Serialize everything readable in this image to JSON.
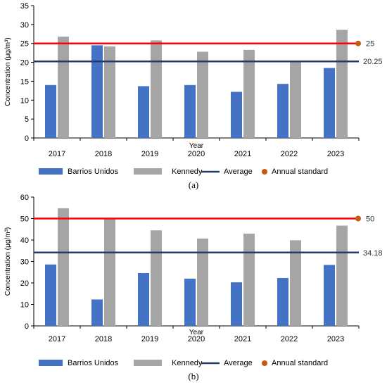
{
  "chart_data": [
    {
      "type": "bar",
      "panel": "(a)",
      "panel_letter": "a",
      "categories": [
        "2017",
        "2018",
        "2019",
        "2020",
        "2021",
        "2022",
        "2023"
      ],
      "series": [
        {
          "name": "Barrios Unidos",
          "color": "#4472C4",
          "values": [
            14.0,
            24.5,
            13.7,
            14.0,
            12.2,
            14.3,
            18.5
          ]
        },
        {
          "name": "Kennedy",
          "color": "#A5A5A5",
          "values": [
            26.8,
            24.2,
            25.8,
            22.8,
            23.3,
            20.2,
            28.6
          ]
        }
      ],
      "average": {
        "name": "Average",
        "value": 20.25,
        "label": "20.25",
        "color": "#1F3A6E"
      },
      "standard": {
        "name": "Annual standard",
        "value": 25,
        "label": "25",
        "line_color": "#FF0000",
        "marker_color": "#C55A11"
      },
      "ylabel": "Concentration (μg/m³)",
      "xlabel": "Year",
      "ylim": [
        0,
        35
      ],
      "yticks": [
        0,
        5,
        10,
        15,
        20,
        25,
        30,
        35
      ],
      "legend_position": "bottom",
      "grid": false
    },
    {
      "type": "bar",
      "panel": "(b)",
      "panel_letter": "b",
      "categories": [
        "2017",
        "2018",
        "2019",
        "2020",
        "2021",
        "2022",
        "2023"
      ],
      "series": [
        {
          "name": "Barrios Unidos",
          "color": "#4472C4",
          "values": [
            28.6,
            12.3,
            24.6,
            22.0,
            20.3,
            22.3,
            28.4
          ]
        },
        {
          "name": "Kennedy",
          "color": "#A5A5A5",
          "values": [
            54.8,
            50.0,
            44.5,
            40.7,
            43.0,
            39.9,
            46.7
          ]
        }
      ],
      "average": {
        "name": "Average",
        "value": 34.18,
        "label": "34.18",
        "color": "#1F3A6E"
      },
      "standard": {
        "name": "Annual standard",
        "value": 50,
        "label": "50",
        "line_color": "#FF0000",
        "marker_color": "#C55A11"
      },
      "ylabel": "Concentration (μg/m³)",
      "xlabel": "Year",
      "ylim": [
        0,
        60
      ],
      "yticks": [
        0,
        10,
        20,
        30,
        40,
        50,
        60
      ],
      "legend_position": "bottom",
      "grid": false
    }
  ]
}
